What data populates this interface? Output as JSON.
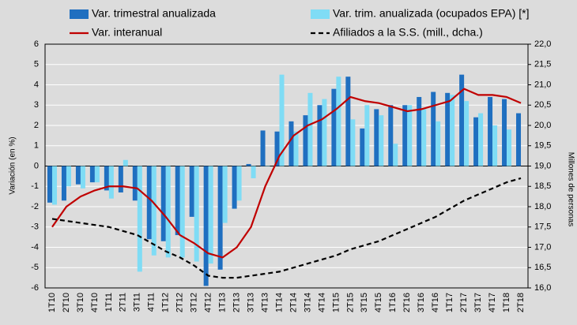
{
  "chart_data": {
    "type": "bar",
    "categories": [
      "1T10",
      "2T10",
      "3T10",
      "4T10",
      "1T11",
      "2T11",
      "3T11",
      "4T11",
      "1T12",
      "2T12",
      "3T12",
      "4T12",
      "1T13",
      "2T13",
      "3T13",
      "4T13",
      "1T14",
      "2T14",
      "3T14",
      "4T14",
      "1T15",
      "2T15",
      "3T15",
      "4T15",
      "1T16",
      "2T16",
      "3T16",
      "4T16",
      "1T17",
      "2T17",
      "3T17",
      "4T17",
      "1T18",
      "2T18"
    ],
    "series": [
      {
        "name": "Var. trimestral anualizada",
        "type": "bar",
        "color": "#1f6fc0",
        "values": [
          -1.8,
          -1.7,
          -0.9,
          -0.8,
          -1.2,
          -1.3,
          -1.7,
          -3.6,
          -3.7,
          -3.4,
          -2.5,
          -5.9,
          -5.1,
          -2.1,
          0.1,
          1.75,
          1.7,
          2.2,
          2.5,
          3.0,
          3.8,
          4.4,
          1.85,
          2.8,
          3.0,
          3.0,
          3.4,
          3.65,
          3.6,
          4.5,
          2.4,
          3.4,
          3.3,
          2.6
        ]
      },
      {
        "name": "Var. trim. anualizada (ocupados EPA) [*]",
        "type": "bar",
        "color": "#7fdcf5",
        "values": [
          -1.9,
          -1.0,
          -1.1,
          -0.8,
          -1.6,
          0.3,
          -5.2,
          -4.4,
          -4.5,
          -4.5,
          -4.7,
          -4.8,
          -2.8,
          -1.7,
          -0.6,
          0.0,
          4.5,
          1.7,
          3.6,
          3.3,
          4.4,
          2.3,
          3.0,
          2.5,
          1.1,
          3.0,
          2.8,
          2.2,
          3.5,
          3.2,
          2.6,
          2.0,
          1.8,
          null
        ]
      },
      {
        "name": "Var. interanual",
        "type": "line",
        "color": "#c00000",
        "values": [
          -3.0,
          -2.0,
          -1.5,
          -1.2,
          -1.0,
          -1.0,
          -1.1,
          -1.7,
          -2.5,
          -3.4,
          -3.8,
          -4.3,
          -4.5,
          -4.0,
          -3.0,
          -1.0,
          0.5,
          1.5,
          2.0,
          2.3,
          2.8,
          3.4,
          3.2,
          3.1,
          2.9,
          2.7,
          2.8,
          3.0,
          3.2,
          3.8,
          3.5,
          3.5,
          3.4,
          3.1
        ]
      },
      {
        "name": "Afiliados a la S.S. (mill., dcha.)",
        "type": "line",
        "dash": true,
        "axis": "y2",
        "color": "#000000",
        "values": [
          17.7,
          17.65,
          17.6,
          17.55,
          17.5,
          17.4,
          17.3,
          17.1,
          16.9,
          16.75,
          16.55,
          16.3,
          16.25,
          16.25,
          16.3,
          16.35,
          16.4,
          16.5,
          16.6,
          16.7,
          16.8,
          16.95,
          17.05,
          17.15,
          17.3,
          17.45,
          17.6,
          17.75,
          17.95,
          18.15,
          18.3,
          18.45,
          18.6,
          18.7
        ]
      }
    ],
    "ylabel": "Variación (en %)",
    "y2label": "Millones de personas",
    "ylim": [
      -6,
      6
    ],
    "yticks": [
      -6,
      -5,
      -4,
      -3,
      -2,
      -1,
      0,
      1,
      2,
      3,
      4,
      5,
      6
    ],
    "y2lim": [
      16,
      22
    ],
    "y2ticks": [
      {
        "value": 16,
        "label": "16,0"
      },
      {
        "value": 16.5,
        "label": "16,5"
      },
      {
        "value": 17,
        "label": "17,0"
      },
      {
        "value": 17.5,
        "label": "17,5"
      },
      {
        "value": 18,
        "label": "18,0"
      },
      {
        "value": 18.5,
        "label": "18,5"
      },
      {
        "value": 19,
        "label": "19,0"
      },
      {
        "value": 19.5,
        "label": "19,5"
      },
      {
        "value": 20,
        "label": "20,0"
      },
      {
        "value": 20.5,
        "label": "20,5"
      },
      {
        "value": 21,
        "label": "21,0"
      },
      {
        "value": 21.5,
        "label": "21,5"
      },
      {
        "value": 22,
        "label": "22,0"
      }
    ],
    "grid": true
  }
}
